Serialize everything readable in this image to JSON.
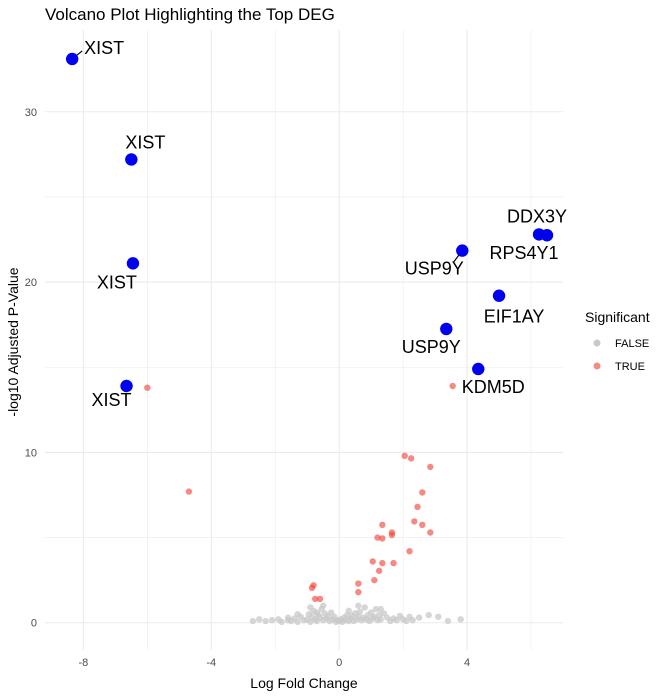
{
  "chart_data": {
    "type": "scatter",
    "title": "Volcano Plot Highlighting the Top DEG",
    "xlabel": "Log Fold Change",
    "ylabel": "-log10 Adjusted P-Value",
    "xlim": [
      -9.2,
      7.0
    ],
    "ylim": [
      -1.6,
      34.8
    ],
    "x_ticks": [
      -8,
      -4,
      0,
      4
    ],
    "y_ticks": [
      0,
      10,
      20,
      30
    ],
    "grid": true,
    "legend": {
      "title": "Significant",
      "position": "right",
      "entries": [
        {
          "label": "FALSE",
          "color": "#c8c8c8"
        },
        {
          "label": "TRUE",
          "color": "#f8766d"
        }
      ]
    },
    "colors": {
      "false": "#c8c8c8",
      "true": "#f03c2e",
      "highlight": "#0000f0"
    },
    "series_false": [
      [
        -2.7,
        0.1
      ],
      [
        -2.5,
        0.2
      ],
      [
        -2.3,
        0.1
      ],
      [
        -2.1,
        0.15
      ],
      [
        -1.9,
        0.2
      ],
      [
        -1.8,
        0.05
      ],
      [
        -1.6,
        0.3
      ],
      [
        -1.5,
        0.1
      ],
      [
        -1.4,
        0.25
      ],
      [
        -1.3,
        0.05
      ],
      [
        -1.2,
        0.35
      ],
      [
        -1.1,
        0.15
      ],
      [
        -1.0,
        0.2
      ],
      [
        -0.95,
        0.5
      ],
      [
        -0.9,
        0.05
      ],
      [
        -0.85,
        0.35
      ],
      [
        -0.8,
        0.7
      ],
      [
        -0.75,
        0.2
      ],
      [
        -0.7,
        0.1
      ],
      [
        -0.65,
        0.45
      ],
      [
        -0.6,
        0.3
      ],
      [
        -0.55,
        0.8
      ],
      [
        -0.5,
        0.15
      ],
      [
        -0.45,
        0.55
      ],
      [
        -0.4,
        0.25
      ],
      [
        -0.35,
        0.4
      ],
      [
        -0.3,
        0.1
      ],
      [
        -0.25,
        0.6
      ],
      [
        -0.2,
        0.2
      ],
      [
        -0.15,
        0.35
      ],
      [
        -0.1,
        0.05
      ],
      [
        -0.05,
        0.15
      ],
      [
        0.0,
        0.1
      ],
      [
        0.05,
        0.2
      ],
      [
        0.1,
        0.05
      ],
      [
        0.15,
        0.3
      ],
      [
        0.2,
        0.15
      ],
      [
        0.25,
        0.45
      ],
      [
        0.3,
        0.1
      ],
      [
        0.35,
        0.25
      ],
      [
        0.4,
        0.4
      ],
      [
        0.45,
        0.1
      ],
      [
        0.5,
        0.55
      ],
      [
        0.55,
        0.2
      ],
      [
        0.6,
        0.35
      ],
      [
        0.65,
        0.65
      ],
      [
        0.7,
        0.15
      ],
      [
        0.75,
        0.3
      ],
      [
        0.8,
        0.9
      ],
      [
        0.85,
        0.2
      ],
      [
        0.9,
        0.45
      ],
      [
        0.95,
        0.1
      ],
      [
        1.0,
        0.6
      ],
      [
        1.05,
        0.25
      ],
      [
        1.1,
        0.35
      ],
      [
        1.15,
        0.8
      ],
      [
        1.2,
        0.15
      ],
      [
        1.25,
        0.45
      ],
      [
        1.3,
        0.2
      ],
      [
        1.4,
        0.55
      ],
      [
        1.5,
        0.3
      ],
      [
        1.6,
        0.1
      ],
      [
        1.7,
        0.25
      ],
      [
        1.8,
        0.15
      ],
      [
        1.9,
        0.4
      ],
      [
        2.0,
        0.2
      ],
      [
        2.1,
        0.1
      ],
      [
        2.3,
        0.15
      ],
      [
        2.5,
        0.3
      ],
      [
        2.8,
        0.45
      ],
      [
        3.1,
        0.35
      ],
      [
        3.4,
        0.1
      ],
      [
        3.8,
        0.2
      ],
      [
        -1.3,
        0.5
      ],
      [
        -0.9,
        0.9
      ],
      [
        -0.7,
        0.6
      ],
      [
        0.6,
        1.0
      ],
      [
        1.3,
        0.8
      ],
      [
        -0.5,
        1.0
      ],
      [
        0.3,
        0.7
      ],
      [
        -1.6,
        0.15
      ],
      [
        2.2,
        0.35
      ]
    ],
    "series_true": [
      [
        -6.0,
        13.8
      ],
      [
        -4.7,
        7.7
      ],
      [
        -0.8,
        2.2
      ],
      [
        -0.75,
        1.4
      ],
      [
        -0.6,
        1.4
      ],
      [
        -0.85,
        2.05
      ],
      [
        0.6,
        2.3
      ],
      [
        0.6,
        1.8
      ],
      [
        1.05,
        3.6
      ],
      [
        1.1,
        2.5
      ],
      [
        1.25,
        3.05
      ],
      [
        1.35,
        3.5
      ],
      [
        1.2,
        5.0
      ],
      [
        1.35,
        4.95
      ],
      [
        1.35,
        5.75
      ],
      [
        1.65,
        5.15
      ],
      [
        1.65,
        5.3
      ],
      [
        1.7,
        3.5
      ],
      [
        2.05,
        9.8
      ],
      [
        2.25,
        9.65
      ],
      [
        2.2,
        4.2
      ],
      [
        2.35,
        5.95
      ],
      [
        2.45,
        6.8
      ],
      [
        2.6,
        7.65
      ],
      [
        2.6,
        5.75
      ],
      [
        2.85,
        9.15
      ],
      [
        2.85,
        5.3
      ],
      [
        3.55,
        13.9
      ]
    ],
    "highlighted": [
      {
        "x": -8.35,
        "y": 33.1,
        "gene": "XIST"
      },
      {
        "x": -6.5,
        "y": 27.2,
        "gene": "XIST"
      },
      {
        "x": -6.45,
        "y": 21.1,
        "gene": "XIST"
      },
      {
        "x": -6.65,
        "y": 13.9,
        "gene": "XIST"
      },
      {
        "x": 3.85,
        "y": 21.85,
        "gene": "USP9Y"
      },
      {
        "x": 3.35,
        "y": 17.25,
        "gene": "USP9Y"
      },
      {
        "x": 6.25,
        "y": 22.8,
        "gene": "DDX3Y"
      },
      {
        "x": 6.5,
        "y": 22.75,
        "gene": "RPS4Y1"
      },
      {
        "x": 5.0,
        "y": 19.2,
        "gene": "EIF1AY"
      },
      {
        "x": 4.35,
        "y": 14.9,
        "gene": "KDM5D"
      }
    ]
  }
}
